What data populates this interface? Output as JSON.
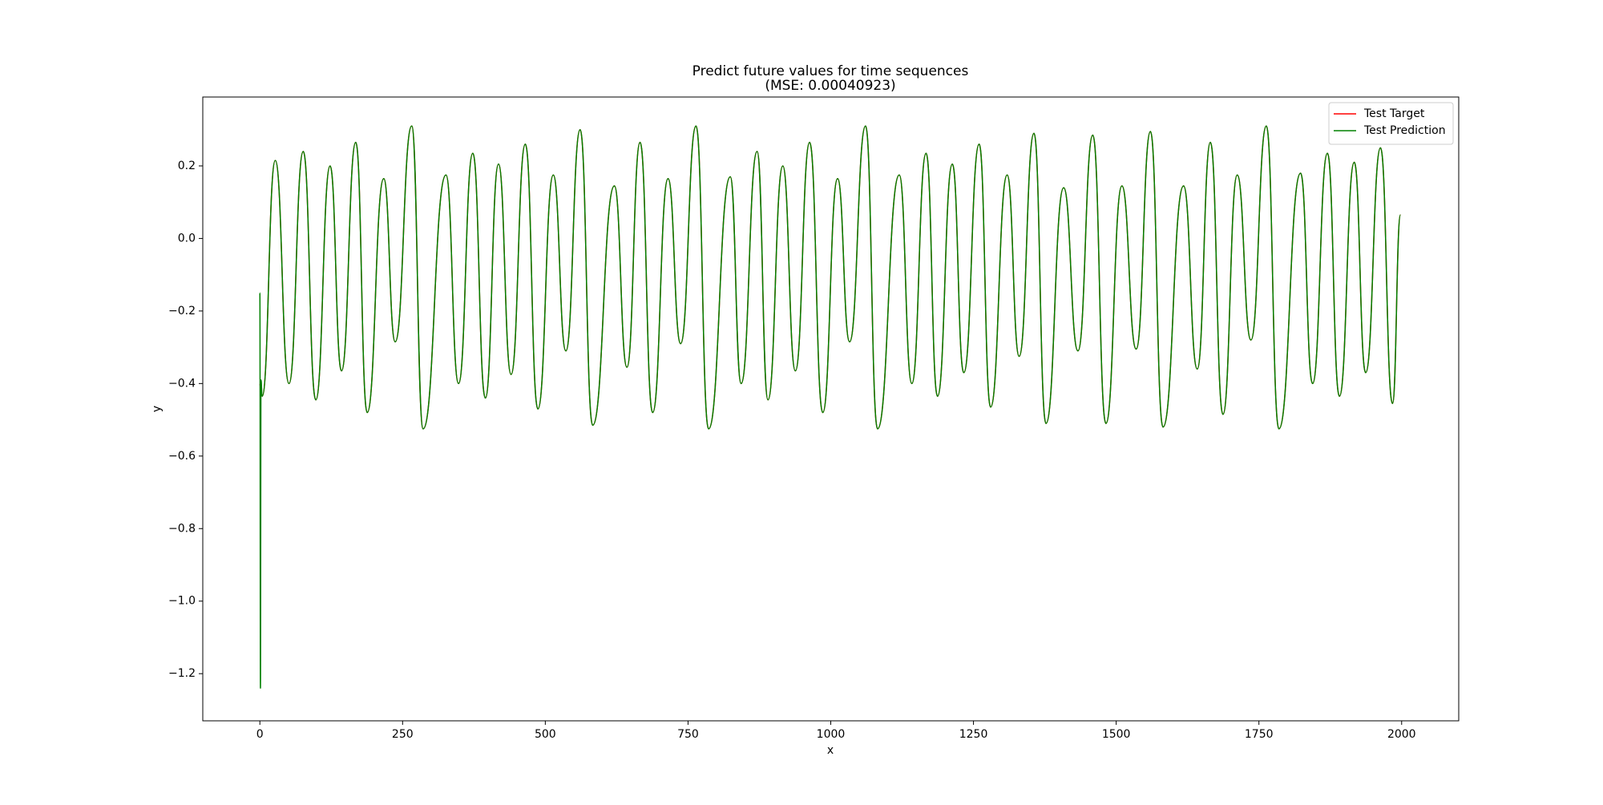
{
  "chart_data": {
    "type": "line",
    "title": "Predict future values for time sequences",
    "subtitle": "(MSE: 0.00040923)",
    "x_label": "x",
    "y_label": "y",
    "legend": "upper right",
    "xlim": [
      -100,
      2100
    ],
    "ylim": [
      -1.33,
      0.39
    ],
    "xticks": [
      0,
      250,
      500,
      750,
      1000,
      1250,
      1500,
      1750,
      2000
    ],
    "yticks": [
      {
        "value": -1.2,
        "label": "−1.2"
      },
      {
        "value": -1.0,
        "label": "−1.0"
      },
      {
        "value": -0.8,
        "label": "−0.8"
      },
      {
        "value": -0.6,
        "label": "−0.6"
      },
      {
        "value": -0.4,
        "label": "−0.4"
      },
      {
        "value": -0.2,
        "label": "−0.2"
      },
      {
        "value": 0.0,
        "label": "0.0"
      },
      {
        "value": 0.2,
        "label": "0.2"
      }
    ],
    "x": [
      0,
      1,
      2,
      4,
      27,
      51,
      76,
      98,
      123,
      143,
      168,
      188,
      217,
      237,
      266,
      286,
      326,
      348,
      373,
      395,
      418,
      440,
      465,
      487,
      514,
      536,
      561,
      583,
      621,
      643,
      666,
      688,
      715,
      737,
      764,
      786,
      824,
      843,
      871,
      890,
      916,
      938,
      963,
      986,
      1012,
      1033,
      1061,
      1082,
      1120,
      1142,
      1167,
      1187,
      1213,
      1233,
      1260,
      1280,
      1309,
      1330,
      1356,
      1377,
      1408,
      1433,
      1459,
      1482,
      1510,
      1535,
      1560,
      1582,
      1618,
      1642,
      1665,
      1687,
      1712,
      1736,
      1763,
      1785,
      1823,
      1844,
      1870,
      1891,
      1917,
      1937,
      1963,
      1984,
      1998
    ],
    "series": [
      {
        "name": "Test Target",
        "color": "#ff0000",
        "values": [
          -0.4,
          -0.41,
          -0.42,
          -0.435,
          0.215,
          -0.4,
          0.24,
          -0.445,
          0.2,
          -0.365,
          0.265,
          -0.48,
          0.165,
          -0.285,
          0.31,
          -0.525,
          0.175,
          -0.4,
          0.235,
          -0.44,
          0.205,
          -0.375,
          0.26,
          -0.47,
          0.175,
          -0.31,
          0.3,
          -0.515,
          0.145,
          -0.355,
          0.265,
          -0.48,
          0.165,
          -0.29,
          0.31,
          -0.525,
          0.17,
          -0.4,
          0.24,
          -0.445,
          0.2,
          -0.365,
          0.265,
          -0.48,
          0.165,
          -0.285,
          0.31,
          -0.525,
          0.175,
          -0.4,
          0.235,
          -0.435,
          0.205,
          -0.37,
          0.26,
          -0.465,
          0.175,
          -0.325,
          0.29,
          -0.51,
          0.14,
          -0.31,
          0.285,
          -0.51,
          0.145,
          -0.305,
          0.295,
          -0.52,
          0.145,
          -0.36,
          0.265,
          -0.485,
          0.175,
          -0.28,
          0.31,
          -0.525,
          0.18,
          -0.4,
          0.235,
          -0.435,
          0.21,
          -0.37,
          0.25,
          -0.455,
          0.065
        ]
      },
      {
        "name": "Test Prediction",
        "color": "#008000",
        "values": [
          -0.15,
          -1.24,
          -0.39,
          -0.435,
          0.215,
          -0.4,
          0.24,
          -0.445,
          0.2,
          -0.365,
          0.265,
          -0.48,
          0.165,
          -0.285,
          0.31,
          -0.525,
          0.175,
          -0.4,
          0.235,
          -0.44,
          0.205,
          -0.375,
          0.26,
          -0.47,
          0.175,
          -0.31,
          0.3,
          -0.515,
          0.145,
          -0.355,
          0.265,
          -0.48,
          0.165,
          -0.29,
          0.31,
          -0.525,
          0.17,
          -0.4,
          0.24,
          -0.445,
          0.2,
          -0.365,
          0.265,
          -0.48,
          0.165,
          -0.285,
          0.31,
          -0.525,
          0.175,
          -0.4,
          0.235,
          -0.435,
          0.205,
          -0.37,
          0.26,
          -0.465,
          0.175,
          -0.325,
          0.29,
          -0.51,
          0.14,
          -0.31,
          0.285,
          -0.51,
          0.145,
          -0.305,
          0.295,
          -0.52,
          0.145,
          -0.36,
          0.265,
          -0.485,
          0.175,
          -0.28,
          0.31,
          -0.525,
          0.18,
          -0.4,
          0.235,
          -0.435,
          0.21,
          -0.37,
          0.25,
          -0.455,
          0.065
        ]
      }
    ]
  }
}
